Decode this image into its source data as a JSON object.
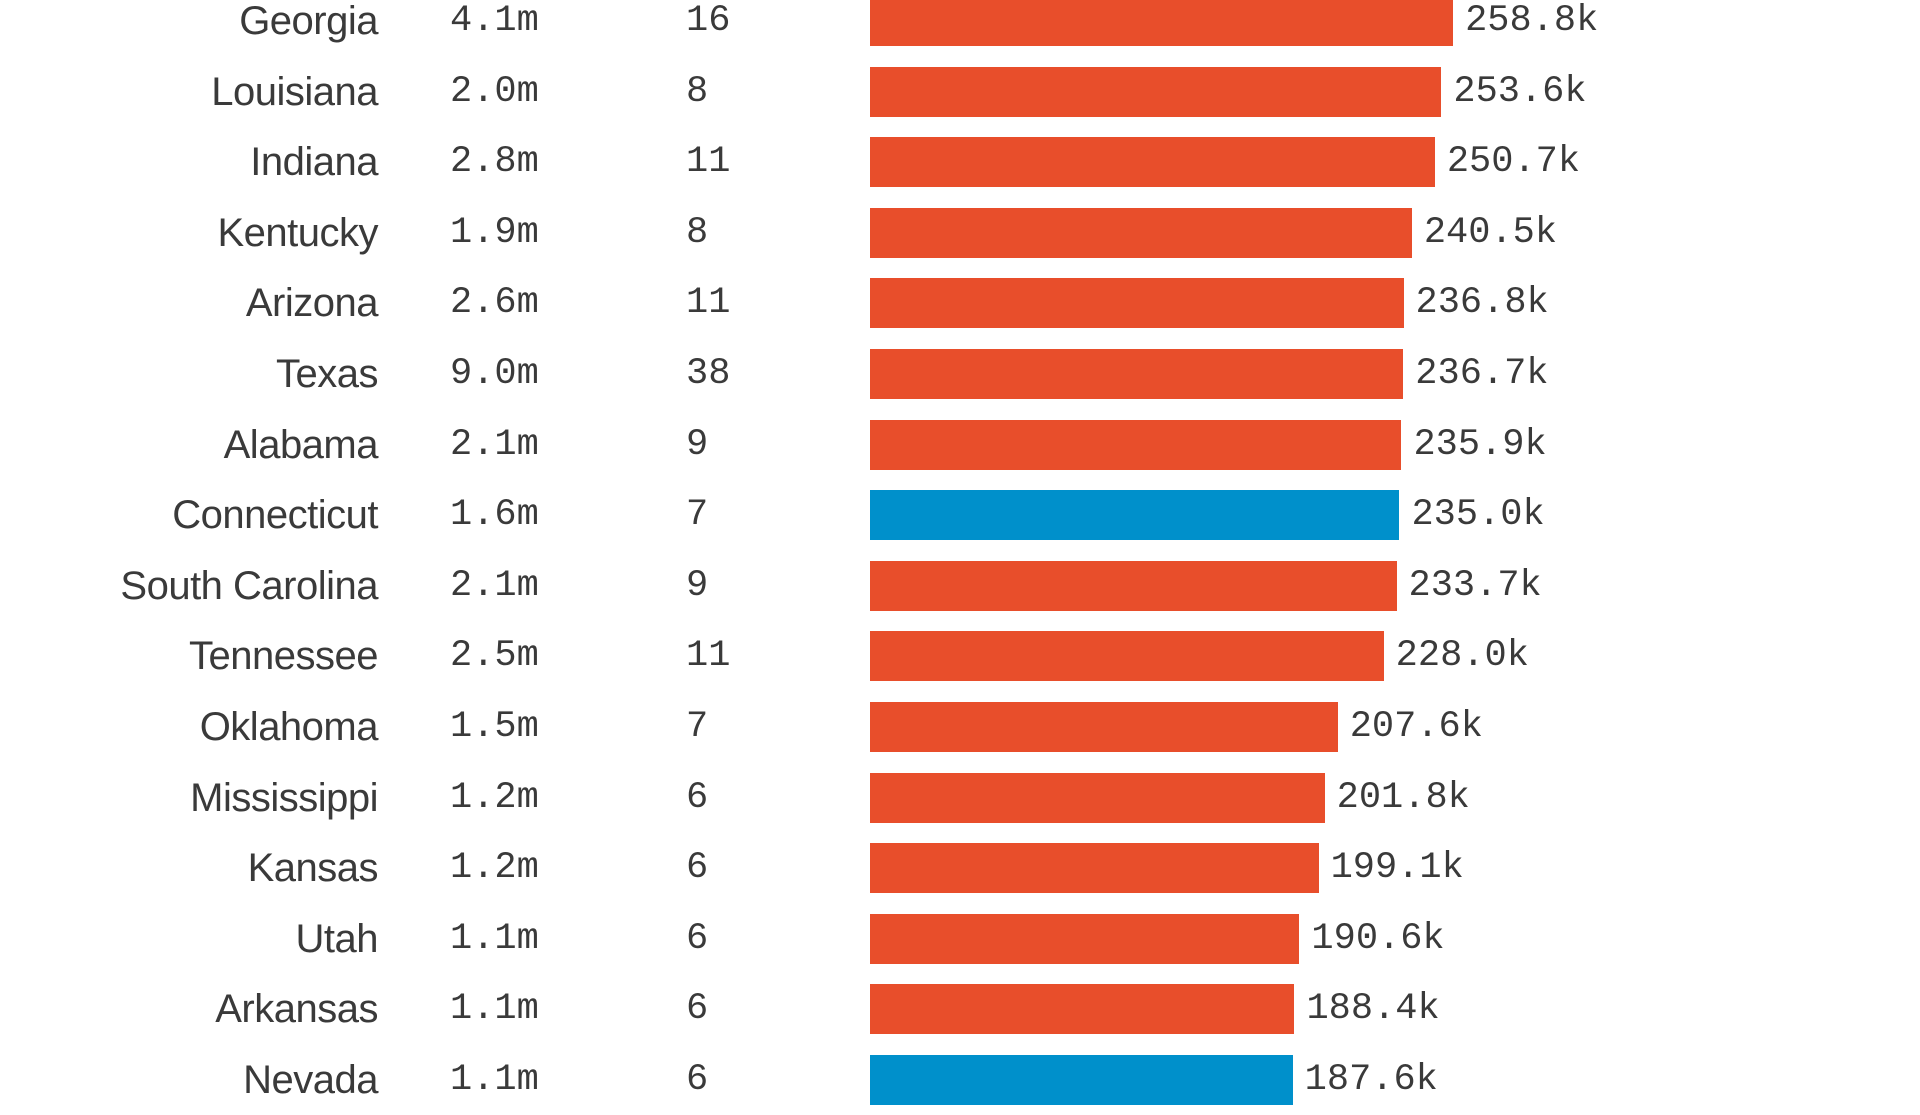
{
  "chart_data": {
    "type": "table",
    "colors": {
      "red": "#E84E2B",
      "blue": "#0090CB"
    },
    "xlim": [
      0,
      260
    ],
    "rows": [
      {
        "state": "Georgia",
        "population": "4.1m",
        "electoral_votes": "16",
        "value": 258.8,
        "label": "258.8k",
        "party": "red"
      },
      {
        "state": "Louisiana",
        "population": "2.0m",
        "electoral_votes": "8",
        "value": 253.6,
        "label": "253.6k",
        "party": "red"
      },
      {
        "state": "Indiana",
        "population": "2.8m",
        "electoral_votes": "11",
        "value": 250.7,
        "label": "250.7k",
        "party": "red"
      },
      {
        "state": "Kentucky",
        "population": "1.9m",
        "electoral_votes": "8",
        "value": 240.5,
        "label": "240.5k",
        "party": "red"
      },
      {
        "state": "Arizona",
        "population": "2.6m",
        "electoral_votes": "11",
        "value": 236.8,
        "label": "236.8k",
        "party": "red"
      },
      {
        "state": "Texas",
        "population": "9.0m",
        "electoral_votes": "38",
        "value": 236.7,
        "label": "236.7k",
        "party": "red"
      },
      {
        "state": "Alabama",
        "population": "2.1m",
        "electoral_votes": "9",
        "value": 235.9,
        "label": "235.9k",
        "party": "red"
      },
      {
        "state": "Connecticut",
        "population": "1.6m",
        "electoral_votes": "7",
        "value": 235.0,
        "label": "235.0k",
        "party": "blue"
      },
      {
        "state": "South Carolina",
        "population": "2.1m",
        "electoral_votes": "9",
        "value": 233.7,
        "label": "233.7k",
        "party": "red"
      },
      {
        "state": "Tennessee",
        "population": "2.5m",
        "electoral_votes": "11",
        "value": 228.0,
        "label": "228.0k",
        "party": "red"
      },
      {
        "state": "Oklahoma",
        "population": "1.5m",
        "electoral_votes": "7",
        "value": 207.6,
        "label": "207.6k",
        "party": "red"
      },
      {
        "state": "Mississippi",
        "population": "1.2m",
        "electoral_votes": "6",
        "value": 201.8,
        "label": "201.8k",
        "party": "red"
      },
      {
        "state": "Kansas",
        "population": "1.2m",
        "electoral_votes": "6",
        "value": 199.1,
        "label": "199.1k",
        "party": "red"
      },
      {
        "state": "Utah",
        "population": "1.1m",
        "electoral_votes": "6",
        "value": 190.6,
        "label": "190.6k",
        "party": "red"
      },
      {
        "state": "Arkansas",
        "population": "1.1m",
        "electoral_votes": "6",
        "value": 188.4,
        "label": "188.4k",
        "party": "red"
      },
      {
        "state": "Nevada",
        "population": "1.1m",
        "electoral_votes": "6",
        "value": 187.6,
        "label": "187.6k",
        "party": "blue"
      }
    ]
  }
}
